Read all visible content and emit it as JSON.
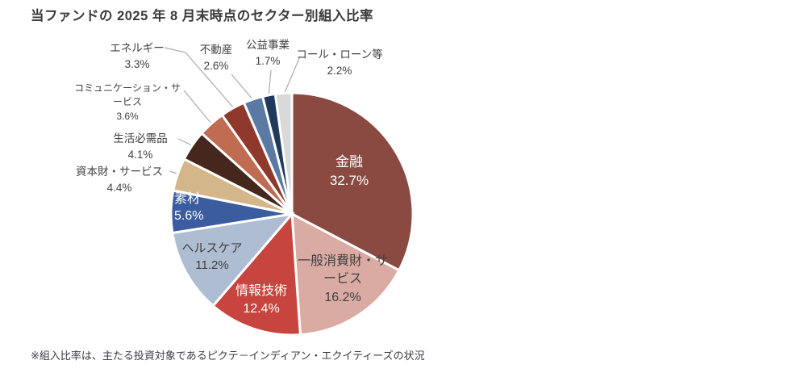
{
  "chart_data": {
    "type": "pie",
    "title": "当ファンドの 2025 年 8 月末時点のセクター別組入比率",
    "note": "※組入比率は、主たる投資対象であるピクテ－インディアン・エクイティーズの状況",
    "legend_position": "none",
    "label_style": "large slices labeled inside, small slices labeled outside with gray leader lines",
    "start_angle": "12 o'clock, clockwise",
    "leader_line_color": "#ababab",
    "slice_border_color": "#ffffff",
    "slices": [
      {
        "label": "金融",
        "value": 32.7,
        "pct_label": "32.7%",
        "color": "#8a4a41",
        "label_color": "#ffffff",
        "placement": "inside"
      },
      {
        "label": "一般消費財・サービス",
        "value": 16.2,
        "pct_label": "16.2%",
        "color": "#daaba2",
        "label_color": "#404040",
        "placement": "inside"
      },
      {
        "label": "情報技術",
        "value": 12.4,
        "pct_label": "12.4%",
        "color": "#c7453e",
        "label_color": "#ffffff",
        "placement": "inside"
      },
      {
        "label": "ヘルスケア",
        "value": 11.2,
        "pct_label": "11.2%",
        "color": "#aebdd2",
        "label_color": "#404040",
        "placement": "inside"
      },
      {
        "label": "素材",
        "value": 5.6,
        "pct_label": "5.6%",
        "color": "#3b5c9e",
        "label_color": "#ffffff",
        "placement": "inside"
      },
      {
        "label": "資本財・サービス",
        "value": 4.4,
        "pct_label": "4.4%",
        "color": "#d3b78b",
        "label_color": "#404040",
        "placement": "outside"
      },
      {
        "label": "生活必需品",
        "value": 4.1,
        "pct_label": "4.1%",
        "color": "#45271d",
        "label_color": "#404040",
        "placement": "outside"
      },
      {
        "label": "コミュニケーション・サービス",
        "value": 3.6,
        "pct_label": "3.6%",
        "color": "#bf6c52",
        "label_color": "#404040",
        "placement": "outside"
      },
      {
        "label": "エネルギー",
        "value": 3.3,
        "pct_label": "3.3%",
        "color": "#8e392b",
        "label_color": "#404040",
        "placement": "outside"
      },
      {
        "label": "不動産",
        "value": 2.6,
        "pct_label": "2.6%",
        "color": "#5a7aa4",
        "label_color": "#404040",
        "placement": "outside"
      },
      {
        "label": "公益事業",
        "value": 1.7,
        "pct_label": "1.7%",
        "color": "#1f3a5c",
        "label_color": "#404040",
        "placement": "outside"
      },
      {
        "label": "コール・ローン等",
        "value": 2.2,
        "pct_label": "2.2%",
        "color": "#d9d9d9",
        "label_color": "#404040",
        "placement": "outside"
      }
    ]
  }
}
